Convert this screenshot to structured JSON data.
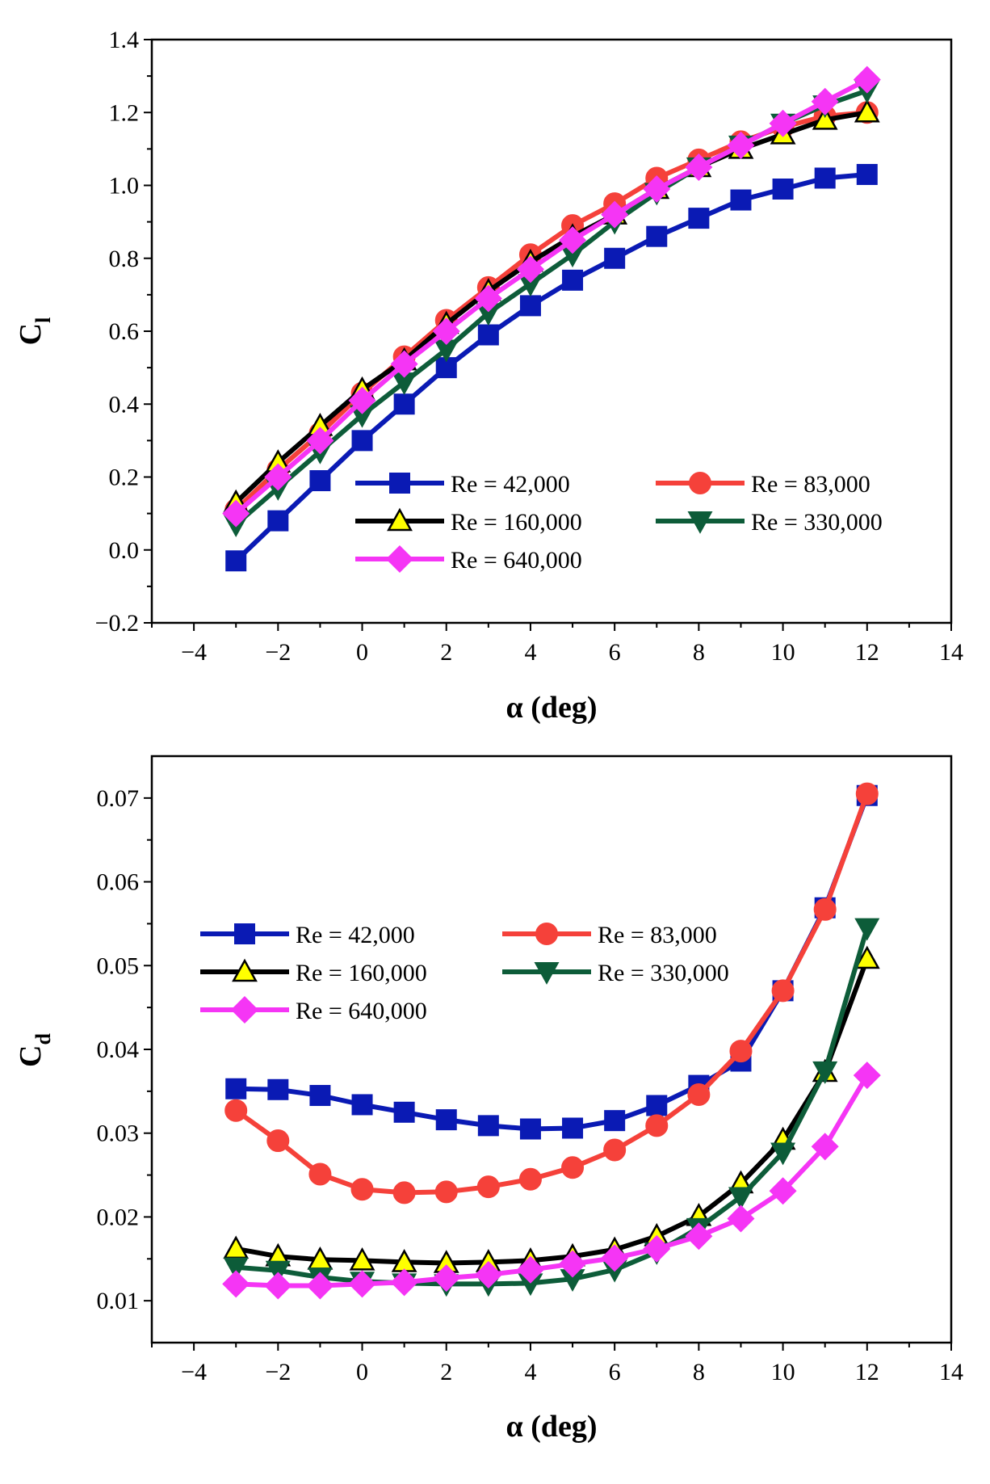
{
  "chart_data": [
    {
      "type": "line",
      "id": "cl",
      "ylabel": "C",
      "ylabel_sub": "l",
      "xlabel": "α (deg)",
      "xlim": [
        -5,
        14
      ],
      "ylim": [
        -0.2,
        1.4
      ],
      "xticks": [
        -4,
        -2,
        0,
        2,
        4,
        6,
        8,
        10,
        12,
        14
      ],
      "xtick_labels": [
        "−4",
        "−2",
        "0",
        "2",
        "4",
        "6",
        "8",
        "10",
        "12",
        "14"
      ],
      "yticks": [
        -0.2,
        0.0,
        0.2,
        0.4,
        0.6,
        0.8,
        1.0,
        1.2,
        1.4
      ],
      "ytick_labels": [
        "−0.2",
        "0.0",
        "0.2",
        "0.4",
        "0.6",
        "0.8",
        "1.0",
        "1.2",
        "1.4"
      ],
      "x": [
        -3,
        -2,
        -1,
        0,
        1,
        2,
        3,
        4,
        5,
        6,
        7,
        8,
        9,
        10,
        11,
        12
      ],
      "series": [
        {
          "name": "Re = 42,000",
          "color": "#0a1ab4",
          "marker": "square",
          "values": [
            -0.03,
            0.08,
            0.19,
            0.3,
            0.4,
            0.5,
            0.59,
            0.67,
            0.74,
            0.8,
            0.86,
            0.91,
            0.96,
            0.99,
            1.02,
            1.03
          ]
        },
        {
          "name": "Re = 83,000",
          "color": "#f5413a",
          "marker": "circle",
          "values": [
            0.11,
            0.22,
            0.32,
            0.43,
            0.53,
            0.63,
            0.72,
            0.81,
            0.89,
            0.95,
            1.02,
            1.07,
            1.12,
            1.16,
            1.19,
            1.2
          ]
        },
        {
          "name": "Re  = 160,000",
          "color": "#000000",
          "marker": "triangle-up",
          "values": [
            0.13,
            0.24,
            0.34,
            0.44,
            0.52,
            0.62,
            0.71,
            0.79,
            0.86,
            0.92,
            0.99,
            1.05,
            1.1,
            1.14,
            1.18,
            1.2
          ]
        },
        {
          "name": "Re = 330,000",
          "color": "#0d5c39",
          "marker": "triangle-down",
          "values": [
            0.07,
            0.17,
            0.27,
            0.37,
            0.46,
            0.55,
            0.65,
            0.73,
            0.81,
            0.9,
            0.98,
            1.05,
            1.11,
            1.17,
            1.22,
            1.26
          ]
        },
        {
          "name": "Re = 640,000",
          "color": "#f535f5",
          "marker": "diamond",
          "values": [
            0.1,
            0.2,
            0.3,
            0.41,
            0.51,
            0.6,
            0.69,
            0.77,
            0.85,
            0.92,
            0.99,
            1.05,
            1.11,
            1.17,
            1.23,
            1.29
          ]
        }
      ],
      "legend_layout": [
        [
          0,
          1
        ],
        [
          2,
          3
        ],
        [
          4
        ]
      ],
      "legend": "lower-right"
    },
    {
      "type": "line",
      "id": "cd",
      "ylabel": "C",
      "ylabel_sub": "d",
      "xlabel": "α (deg)",
      "xlim": [
        -5,
        14
      ],
      "ylim": [
        0.005,
        0.075
      ],
      "xticks": [
        -4,
        -2,
        0,
        2,
        4,
        6,
        8,
        10,
        12,
        14
      ],
      "xtick_labels": [
        "−4",
        "−2",
        "0",
        "2",
        "4",
        "6",
        "8",
        "10",
        "12",
        "14"
      ],
      "yticks": [
        0.01,
        0.02,
        0.03,
        0.04,
        0.05,
        0.06,
        0.07
      ],
      "ytick_labels": [
        "0.01",
        "0.02",
        "0.03",
        "0.04",
        "0.05",
        "0.06",
        "0.07"
      ],
      "x": [
        -3,
        -2,
        -1,
        0,
        1,
        2,
        3,
        4,
        5,
        6,
        7,
        8,
        9,
        10,
        11,
        12
      ],
      "series": [
        {
          "name": "Re = 42,000",
          "color": "#0a1ab4",
          "marker": "square",
          "values": [
            0.0353,
            0.0352,
            0.0345,
            0.0334,
            0.0325,
            0.0316,
            0.0309,
            0.0305,
            0.0306,
            0.0315,
            0.0333,
            0.0357,
            0.0386,
            0.047,
            0.0569,
            0.0703
          ]
        },
        {
          "name": "Re = 83,000",
          "color": "#f5413a",
          "marker": "circle",
          "values": [
            0.0327,
            0.0291,
            0.0251,
            0.0233,
            0.0229,
            0.023,
            0.0236,
            0.0245,
            0.0259,
            0.028,
            0.0309,
            0.0346,
            0.0398,
            0.047,
            0.0567,
            0.0705
          ]
        },
        {
          "name": "Re = 160,000",
          "color": "#000000",
          "marker": "triangle-up",
          "values": [
            0.0162,
            0.0153,
            0.0149,
            0.0148,
            0.0146,
            0.0145,
            0.0146,
            0.0148,
            0.0153,
            0.0161,
            0.0177,
            0.0201,
            0.024,
            0.0292,
            0.0373,
            0.0508
          ]
        },
        {
          "name": "Re = 330,000",
          "color": "#0d5c39",
          "marker": "triangle-down",
          "values": [
            0.014,
            0.0136,
            0.0128,
            0.0123,
            0.0121,
            0.012,
            0.012,
            0.0121,
            0.0126,
            0.0137,
            0.0158,
            0.0187,
            0.0224,
            0.0277,
            0.0374,
            0.0545
          ]
        },
        {
          "name": "Re = 640,000",
          "color": "#f535f5",
          "marker": "diamond",
          "values": [
            0.012,
            0.0118,
            0.0118,
            0.012,
            0.0122,
            0.0127,
            0.0131,
            0.0137,
            0.0144,
            0.0151,
            0.0162,
            0.0177,
            0.0198,
            0.0231,
            0.0284,
            0.0369
          ]
        }
      ],
      "legend_layout": [
        [
          0,
          1
        ],
        [
          2,
          3
        ],
        [
          4
        ]
      ],
      "legend": "upper-left"
    }
  ]
}
